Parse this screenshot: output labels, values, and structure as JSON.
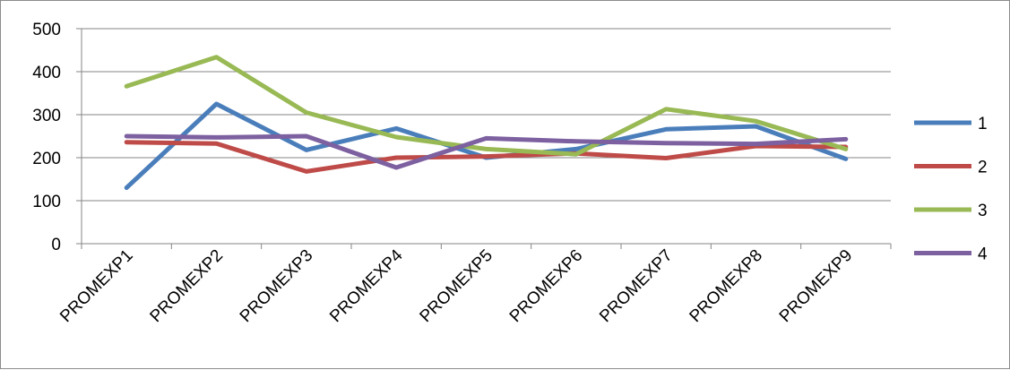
{
  "chart_data": {
    "type": "line",
    "title": "",
    "xlabel": "",
    "ylabel": "",
    "ylim": [
      0,
      500
    ],
    "y_ticks": [
      0,
      100,
      200,
      300,
      400,
      500
    ],
    "grid": "horizontal",
    "legend_position": "right",
    "categories": [
      "PROMEXP1",
      "PROMEXP2",
      "PROMEXP3",
      "PROMEXP4",
      "PROMEXP5",
      "PROMEXP6",
      "PROMEXP7",
      "PROMEXP8",
      "PROMEXP9"
    ],
    "series": [
      {
        "name": "1",
        "color": "#4a7ebb",
        "values": [
          130,
          325,
          218,
          268,
          200,
          220,
          266,
          273,
          197
        ]
      },
      {
        "name": "2",
        "color": "#be4b48",
        "values": [
          236,
          233,
          168,
          200,
          203,
          210,
          199,
          227,
          225
        ]
      },
      {
        "name": "3",
        "color": "#98b954",
        "values": [
          366,
          434,
          305,
          248,
          220,
          208,
          313,
          285,
          220
        ]
      },
      {
        "name": "4",
        "color": "#7d60a0",
        "values": [
          250,
          247,
          250,
          177,
          245,
          238,
          234,
          232,
          243
        ]
      }
    ]
  }
}
